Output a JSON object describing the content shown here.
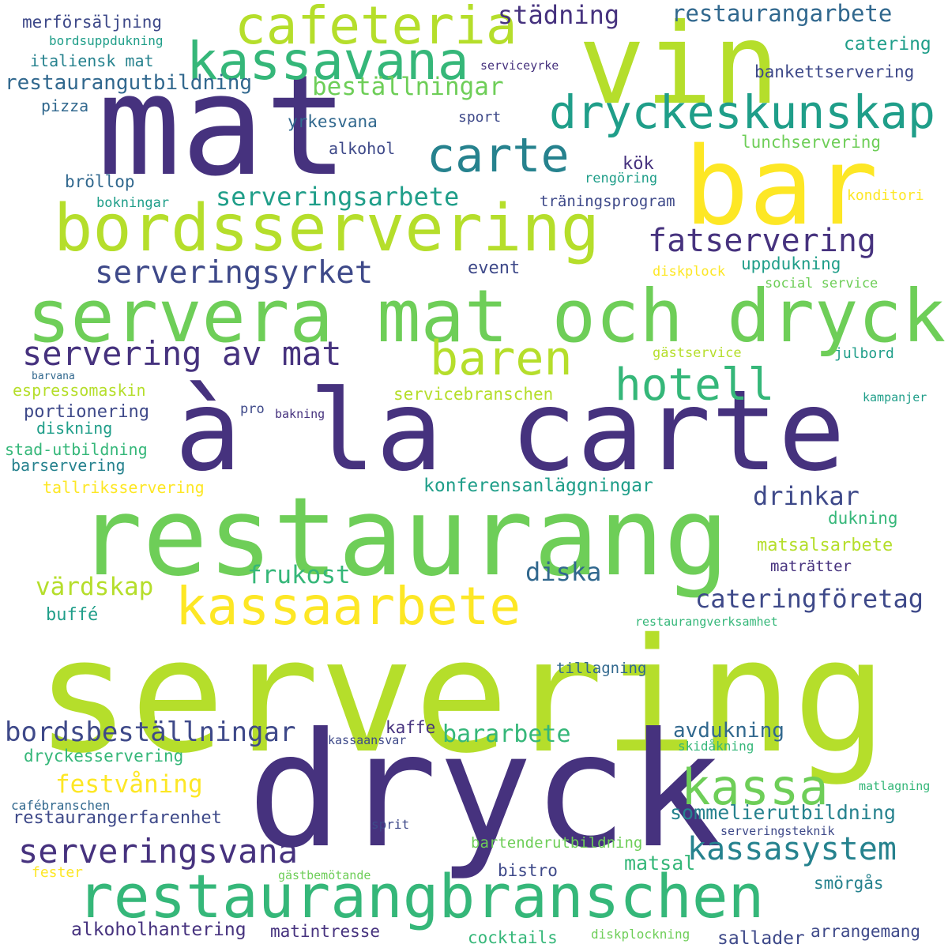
{
  "palette": {
    "dark_purple": "#46327e",
    "purple": "#3e4989",
    "steel_blue": "#31688e",
    "teal": "#26828e",
    "green_teal": "#1f9e89",
    "green": "#35b779",
    "lime_green": "#6ece58",
    "lime": "#b5de2b",
    "yellow": "#fde725"
  },
  "words": [
    {
      "text": "servering",
      "color": "#b5de2b"
    },
    {
      "text": "à la carte",
      "color": "#46327e"
    },
    {
      "text": "restaurang",
      "color": "#6ece58"
    },
    {
      "text": "dryck",
      "color": "#46327e"
    },
    {
      "text": "mat",
      "color": "#46327e"
    },
    {
      "text": "vin",
      "color": "#b5de2b"
    },
    {
      "text": "bar",
      "color": "#fde725"
    },
    {
      "text": "servera mat och dryck",
      "color": "#6ece58"
    },
    {
      "text": "bordsservering",
      "color": "#b5de2b"
    },
    {
      "text": "restaurangbranschen",
      "color": "#35b779"
    },
    {
      "text": "kassaarbete",
      "color": "#fde725"
    },
    {
      "text": "cafeteria",
      "color": "#b5de2b"
    },
    {
      "text": "kassavana",
      "color": "#35b779"
    },
    {
      "text": "dryckeskunskap",
      "color": "#1f9e89"
    },
    {
      "text": "carte",
      "color": "#26828e"
    },
    {
      "text": "baren",
      "color": "#b5de2b"
    },
    {
      "text": "kassa",
      "color": "#6ece58"
    },
    {
      "text": "hotell",
      "color": "#35b779"
    },
    {
      "text": "servering av mat",
      "color": "#46327e"
    },
    {
      "text": "serveringsvana",
      "color": "#46327e"
    },
    {
      "text": "serveringsarbete",
      "color": "#1f9e89"
    },
    {
      "text": "fatservering",
      "color": "#46327e"
    },
    {
      "text": "serveringsyrket",
      "color": "#3e4989"
    },
    {
      "text": "kassasystem",
      "color": "#26828e"
    },
    {
      "text": "bordsbeställningar",
      "color": "#3e4989"
    },
    {
      "text": "städning",
      "color": "#46327e"
    },
    {
      "text": "restaurangarbete",
      "color": "#31688e"
    },
    {
      "text": "beställningar",
      "color": "#6ece58"
    },
    {
      "text": "cateringföretag",
      "color": "#3e4989"
    },
    {
      "text": "drinkar",
      "color": "#3e4989"
    },
    {
      "text": "frukost",
      "color": "#35b779"
    },
    {
      "text": "värdskap",
      "color": "#b5de2b"
    },
    {
      "text": "diska",
      "color": "#31688e"
    },
    {
      "text": "festvåning",
      "color": "#fde725"
    },
    {
      "text": "bararbete",
      "color": "#35b779"
    },
    {
      "text": "avdukning",
      "color": "#31688e"
    },
    {
      "text": "sommelierutbildning",
      "color": "#26828e"
    },
    {
      "text": "restaurangutbildning",
      "color": "#31688e"
    },
    {
      "text": "merförsäljning",
      "color": "#3e4989"
    },
    {
      "text": "bordsuppdukning",
      "color": "#1f9e89"
    },
    {
      "text": "italiensk mat",
      "color": "#26828e"
    },
    {
      "text": "pizza",
      "color": "#31688e"
    },
    {
      "text": "yrkesvana",
      "color": "#31688e"
    },
    {
      "text": "alkohol",
      "color": "#3e4989"
    },
    {
      "text": "sport",
      "color": "#3e4989"
    },
    {
      "text": "serviceyrke",
      "color": "#46327e"
    },
    {
      "text": "catering",
      "color": "#1f9e89"
    },
    {
      "text": "bankettservering",
      "color": "#3e4989"
    },
    {
      "text": "lunchservering",
      "color": "#6ece58"
    },
    {
      "text": "kök",
      "color": "#46327e"
    },
    {
      "text": "rengöring",
      "color": "#1f9e89"
    },
    {
      "text": "bröllop",
      "color": "#31688e"
    },
    {
      "text": "bokningar",
      "color": "#1f9e89"
    },
    {
      "text": "träningsprogram",
      "color": "#3e4989"
    },
    {
      "text": "konditori",
      "color": "#fde725"
    },
    {
      "text": "uppdukning",
      "color": "#1f9e89"
    },
    {
      "text": "event",
      "color": "#3e4989"
    },
    {
      "text": "diskplock",
      "color": "#fde725"
    },
    {
      "text": "social service",
      "color": "#6ece58"
    },
    {
      "text": "gästservice",
      "color": "#b5de2b"
    },
    {
      "text": "julbord",
      "color": "#1f9e89"
    },
    {
      "text": "barvana",
      "color": "#31688e"
    },
    {
      "text": "espressomaskin",
      "color": "#b5de2b"
    },
    {
      "text": "servicebranschen",
      "color": "#b5de2b"
    },
    {
      "text": "portionering",
      "color": "#3e4989"
    },
    {
      "text": "pro",
      "color": "#3e4989"
    },
    {
      "text": "bakning",
      "color": "#46327e"
    },
    {
      "text": "kampanjer",
      "color": "#1f9e89"
    },
    {
      "text": "diskning",
      "color": "#1f9e89"
    },
    {
      "text": "stad-utbildning",
      "color": "#35b779"
    },
    {
      "text": "barservering",
      "color": "#26828e"
    },
    {
      "text": "tallriksservering",
      "color": "#fde725"
    },
    {
      "text": "konferensanläggningar",
      "color": "#1f9e89"
    },
    {
      "text": "dukning",
      "color": "#35b779"
    },
    {
      "text": "matsalsarbete",
      "color": "#b5de2b"
    },
    {
      "text": "maträtter",
      "color": "#46327e"
    },
    {
      "text": "buffé",
      "color": "#1f9e89"
    },
    {
      "text": "restaurangverksamhet",
      "color": "#35b779"
    },
    {
      "text": "tillagning",
      "color": "#31688e"
    },
    {
      "text": "kaffe",
      "color": "#46327e"
    },
    {
      "text": "kassaansvar",
      "color": "#3e4989"
    },
    {
      "text": "skidåkning",
      "color": "#35b779"
    },
    {
      "text": "dryckesservering",
      "color": "#35b779"
    },
    {
      "text": "matlagning",
      "color": "#35b779"
    },
    {
      "text": "cafébranschen",
      "color": "#31688e"
    },
    {
      "text": "restaurangerfarenhet",
      "color": "#3e4989"
    },
    {
      "text": "sprit",
      "color": "#3e4989"
    },
    {
      "text": "serveringsteknik",
      "color": "#3e4989"
    },
    {
      "text": "bartenderutbildning",
      "color": "#6ece58"
    },
    {
      "text": "matsal",
      "color": "#35b779"
    },
    {
      "text": "smörgås",
      "color": "#26828e"
    },
    {
      "text": "bistro",
      "color": "#3e4989"
    },
    {
      "text": "fester",
      "color": "#fde725"
    },
    {
      "text": "gästbemötande",
      "color": "#6ece58"
    },
    {
      "text": "alkoholhantering",
      "color": "#46327e"
    },
    {
      "text": "matintresse",
      "color": "#46327e"
    },
    {
      "text": "cocktails",
      "color": "#35b779"
    },
    {
      "text": "diskplockning",
      "color": "#6ece58"
    },
    {
      "text": "sallader",
      "color": "#3e4989"
    },
    {
      "text": "arrangemang",
      "color": "#3e4989"
    }
  ]
}
